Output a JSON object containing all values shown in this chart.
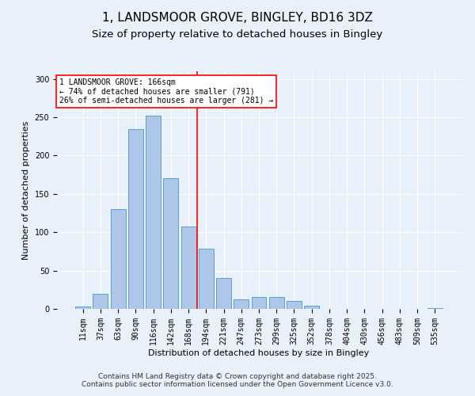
{
  "title": "1, LANDSMOOR GROVE, BINGLEY, BD16 3DZ",
  "subtitle": "Size of property relative to detached houses in Bingley",
  "xlabel": "Distribution of detached houses by size in Bingley",
  "ylabel": "Number of detached properties",
  "categories": [
    "11sqm",
    "37sqm",
    "63sqm",
    "90sqm",
    "116sqm",
    "142sqm",
    "168sqm",
    "194sqm",
    "221sqm",
    "247sqm",
    "273sqm",
    "299sqm",
    "325sqm",
    "352sqm",
    "378sqm",
    "404sqm",
    "430sqm",
    "456sqm",
    "483sqm",
    "509sqm",
    "535sqm"
  ],
  "values": [
    3,
    20,
    130,
    235,
    252,
    170,
    107,
    79,
    40,
    12,
    15,
    15,
    10,
    4,
    0,
    0,
    0,
    0,
    0,
    0,
    1
  ],
  "bar_color": "#aec6e8",
  "bar_edge_color": "#5a9fd4",
  "vline_color": "red",
  "annotation_text": "1 LANDSMOOR GROVE: 166sqm\n← 74% of detached houses are smaller (791)\n26% of semi-detached houses are larger (281) →",
  "annotation_box_color": "white",
  "annotation_box_edge_color": "red",
  "ylim": [
    0,
    310
  ],
  "yticks": [
    0,
    50,
    100,
    150,
    200,
    250,
    300
  ],
  "footnote": "Contains HM Land Registry data © Crown copyright and database right 2025.\nContains public sector information licensed under the Open Government Licence v3.0.",
  "background_color": "#e8f0fa",
  "plot_background_color": "#e8f0fa",
  "grid_color": "white",
  "title_fontsize": 11,
  "subtitle_fontsize": 9.5,
  "label_fontsize": 8,
  "tick_fontsize": 7,
  "footnote_fontsize": 6.5,
  "annotation_fontsize": 7
}
